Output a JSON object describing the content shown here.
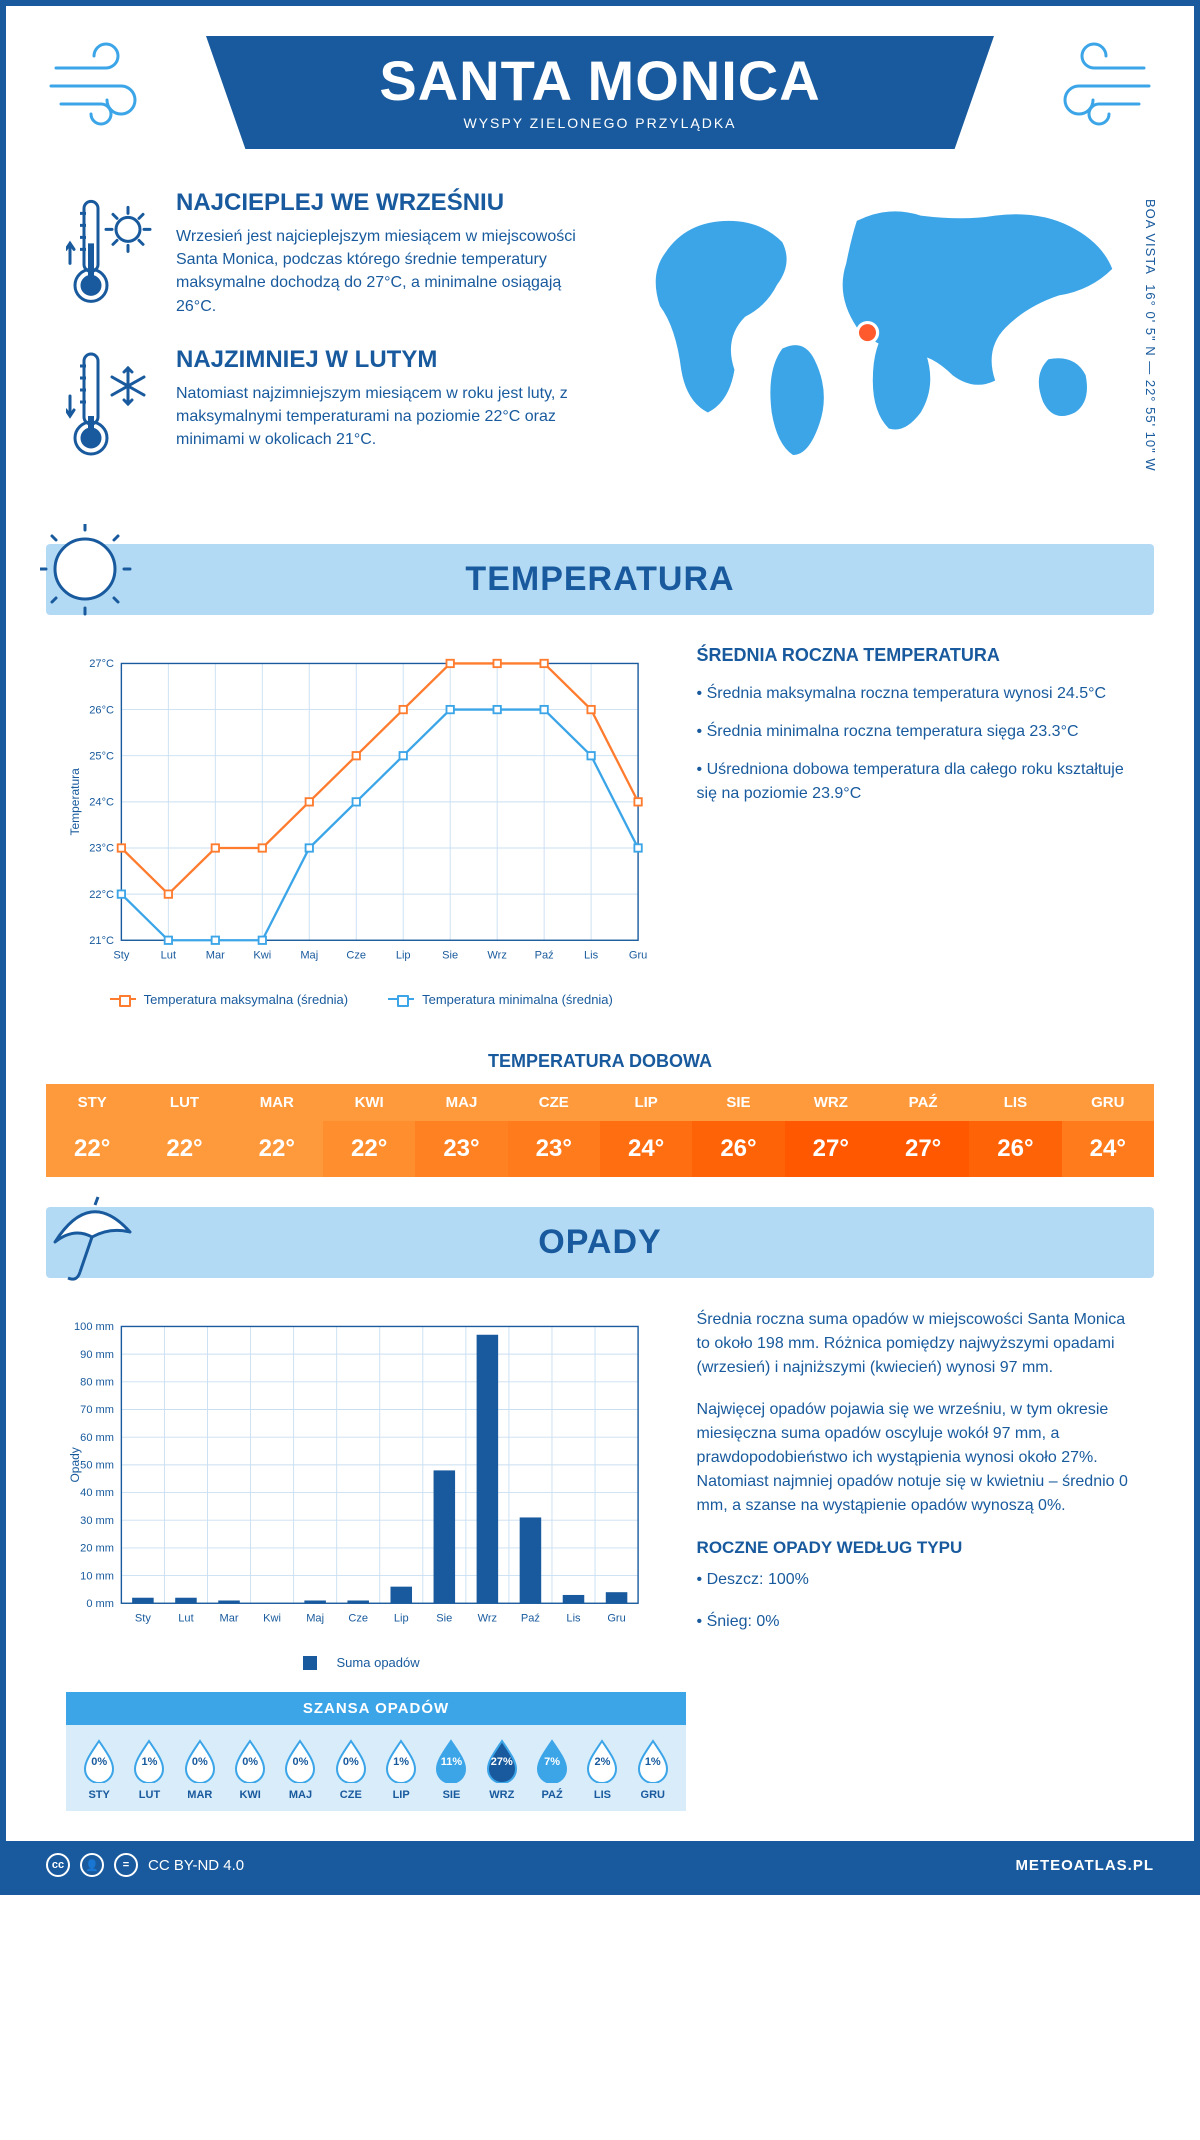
{
  "header": {
    "title": "SANTA MONICA",
    "subtitle": "WYSPY ZIELONEGO PRZYLĄDKA",
    "coords": "16° 0' 5\" N — 22° 55' 10\" W",
    "region": "BOA VISTA"
  },
  "facts": {
    "warmest": {
      "title": "NAJCIEPLEJ WE WRZEŚNIU",
      "body": "Wrzesień jest najcieplejszym miesiącem w miejscowości Santa Monica, podczas którego średnie temperatury maksymalne dochodzą do 27°C, a minimalne osiągają 26°C."
    },
    "coldest": {
      "title": "NAJZIMNIEJ W LUTYM",
      "body": "Natomiast najzimniejszym miesiącem w roku jest luty, z maksymalnymi temperaturami na poziomie 22°C oraz minimami w okolicach 21°C."
    }
  },
  "temp_section": {
    "heading": "TEMPERATURA",
    "chart": {
      "type": "line",
      "months": [
        "Sty",
        "Lut",
        "Mar",
        "Kwi",
        "Maj",
        "Cze",
        "Lip",
        "Sie",
        "Wrz",
        "Paź",
        "Lis",
        "Gru"
      ],
      "series_max": [
        23,
        22,
        23,
        23,
        24,
        25,
        26,
        27,
        27,
        27,
        26,
        24
      ],
      "series_min": [
        22,
        21,
        21,
        21,
        23,
        24,
        25,
        26,
        26,
        26,
        25,
        23
      ],
      "ylim": [
        21,
        27
      ],
      "ytick_step": 1,
      "ylabel": "Temperatura",
      "color_max": "#ff7b2e",
      "color_min": "#3ba5e8",
      "grid_color": "#c9dff2",
      "legend_max": "Temperatura maksymalna (średnia)",
      "legend_min": "Temperatura minimalna (średnia)"
    },
    "stats": {
      "title": "ŚREDNIA ROCZNA TEMPERATURA",
      "p1": "• Średnia maksymalna roczna temperatura wynosi 24.5°C",
      "p2": "• Średnia minimalna roczna temperatura sięga 23.3°C",
      "p3": "• Uśredniona dobowa temperatura dla całego roku kształtuje się na poziomie 23.9°C"
    },
    "daily": {
      "title": "TEMPERATURA DOBOWA",
      "months": [
        "STY",
        "LUT",
        "MAR",
        "KWI",
        "MAJ",
        "CZE",
        "LIP",
        "SIE",
        "WRZ",
        "PAŹ",
        "LIS",
        "GRU"
      ],
      "values": [
        "22°",
        "22°",
        "22°",
        "22°",
        "23°",
        "23°",
        "24°",
        "26°",
        "27°",
        "27°",
        "26°",
        "24°"
      ],
      "head_bg": "#ff9a3c",
      "val_colors": [
        "#ff9a3c",
        "#ff9a3c",
        "#ff9a3c",
        "#ff8e2f",
        "#ff8122",
        "#ff7b1c",
        "#ff6f12",
        "#ff6307",
        "#ff5800",
        "#ff5800",
        "#ff6307",
        "#ff7b1c"
      ]
    }
  },
  "precip_section": {
    "heading": "OPADY",
    "chart": {
      "type": "bar",
      "months": [
        "Sty",
        "Lut",
        "Mar",
        "Kwi",
        "Maj",
        "Cze",
        "Lip",
        "Sie",
        "Wrz",
        "Paź",
        "Lis",
        "Gru"
      ],
      "values": [
        2,
        2,
        1,
        0,
        1,
        1,
        6,
        48,
        97,
        31,
        3,
        4
      ],
      "ylim": [
        0,
        100
      ],
      "ytick_step": 10,
      "ylabel": "Opady",
      "bar_color": "#185a9d",
      "grid_color": "#c9dff2",
      "legend": "Suma opadów"
    },
    "text": {
      "p1": "Średnia roczna suma opadów w miejscowości Santa Monica to około 198 mm. Różnica pomiędzy najwyższymi opadami (wrzesień) i najniższymi (kwiecień) wynosi 97 mm.",
      "p2": "Najwięcej opadów pojawia się we wrześniu, w tym okresie miesięczna suma opadów oscyluje wokół 97 mm, a prawdopodobieństwo ich wystąpienia wynosi około 27%. Natomiast najmniej opadów notuje się w kwietniu – średnio 0 mm, a szanse na wystąpienie opadów wynoszą 0%.",
      "type_title": "ROCZNE OPADY WEDŁUG TYPU",
      "type_rain": "• Deszcz: 100%",
      "type_snow": "• Śnieg: 0%"
    },
    "chance": {
      "title": "SZANSA OPADÓW",
      "months": [
        "STY",
        "LUT",
        "MAR",
        "KWI",
        "MAJ",
        "CZE",
        "LIP",
        "SIE",
        "WRZ",
        "PAŹ",
        "LIS",
        "GRU"
      ],
      "pct": [
        "0%",
        "1%",
        "0%",
        "0%",
        "0%",
        "0%",
        "1%",
        "11%",
        "27%",
        "7%",
        "2%",
        "1%"
      ],
      "fill_pct": [
        0,
        1,
        0,
        0,
        0,
        0,
        1,
        11,
        27,
        7,
        2,
        1
      ],
      "outline_color": "#3ba5e8",
      "fill_light": "#3ba5e8",
      "fill_dark": "#185a9d"
    }
  },
  "footer": {
    "license": "CC BY-ND 4.0",
    "site": "METEOATLAS.PL"
  }
}
